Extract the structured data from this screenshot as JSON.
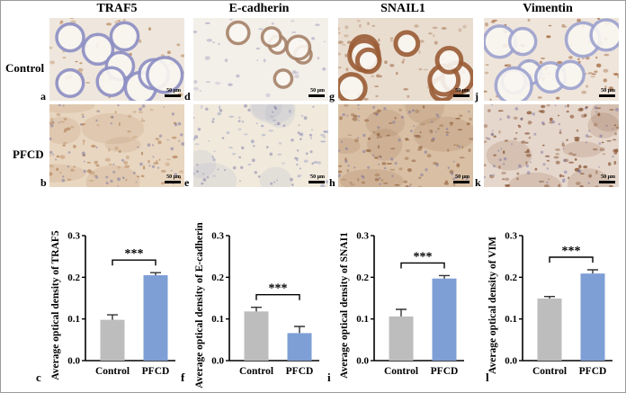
{
  "columns": [
    {
      "title": "TRAF5"
    },
    {
      "title": "E-cadherin"
    },
    {
      "title": "SNAIL1"
    },
    {
      "title": "Vimentin"
    }
  ],
  "rows": [
    {
      "label": "Control"
    },
    {
      "label": "PFCD"
    }
  ],
  "panels": {
    "row1": [
      "a",
      "d",
      "g",
      "j"
    ],
    "row2": [
      "b",
      "e",
      "h",
      "k"
    ],
    "scale_label": "50 μm"
  },
  "chart_letters": [
    "c",
    "f",
    "i",
    "l"
  ],
  "colors": {
    "control_bar": "#bdbdbd",
    "pfcd_bar": "#7e9fd6",
    "ihc_background": "#efe4d6",
    "stain_brown": "#a86b3c",
    "nuclei_blue": "#7f86b8"
  },
  "chart_data": [
    {
      "type": "bar",
      "categories": [
        "Control",
        "PFCD"
      ],
      "values": [
        0.098,
        0.205
      ],
      "errors": [
        0.012,
        0.006
      ],
      "ylabel": "Average optical density of TRAF5",
      "ylim": [
        0,
        0.3
      ],
      "yticks": [
        "0.0",
        "0.1",
        "0.2",
        "0.3"
      ],
      "significance": "***"
    },
    {
      "type": "bar",
      "categories": [
        "Control",
        "PFCD"
      ],
      "values": [
        0.118,
        0.066
      ],
      "errors": [
        0.01,
        0.016
      ],
      "ylabel": "Average optical density of E-cadherin",
      "ylim": [
        0,
        0.3
      ],
      "yticks": [
        "0.0",
        "0.1",
        "0.2",
        "0.3"
      ],
      "significance": "***"
    },
    {
      "type": "bar",
      "categories": [
        "Control",
        "PFCD"
      ],
      "values": [
        0.106,
        0.197
      ],
      "errors": [
        0.017,
        0.007
      ],
      "ylabel": "Average optical density of SNAI1",
      "ylim": [
        0,
        0.3
      ],
      "yticks": [
        "0.0",
        "0.1",
        "0.2",
        "0.3"
      ],
      "significance": "***"
    },
    {
      "type": "bar",
      "categories": [
        "Control",
        "PFCD"
      ],
      "values": [
        0.149,
        0.209
      ],
      "errors": [
        0.005,
        0.009
      ],
      "ylabel": "Average optical density of VIM",
      "ylim": [
        0,
        0.3
      ],
      "yticks": [
        "0.0",
        "0.1",
        "0.2",
        "0.3"
      ],
      "significance": "***"
    }
  ]
}
